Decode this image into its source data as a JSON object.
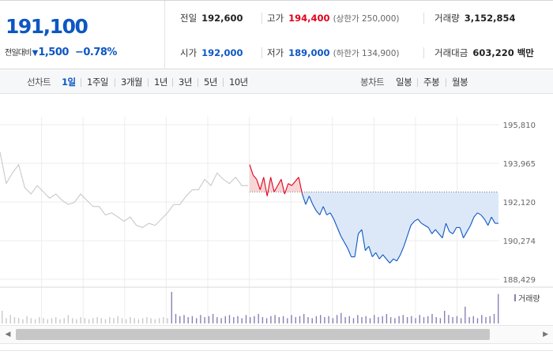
{
  "price": {
    "current": "191,100",
    "change_label": "전일대비",
    "change_triangle": "▼",
    "change_abs": "1,500",
    "change_pct": "−0.78%"
  },
  "quotes": {
    "prev_close": {
      "label": "전일",
      "value": "192,600"
    },
    "high": {
      "label": "고가",
      "value": "194,400",
      "limit": "(상한가 250,000)"
    },
    "volume": {
      "label": "거래량",
      "value": "3,152,854"
    },
    "open": {
      "label": "시가",
      "value": "192,000"
    },
    "low": {
      "label": "저가",
      "value": "189,000",
      "limit": "(하한가 134,900)"
    },
    "trade_value": {
      "label": "거래대금",
      "value": "603,220 백만"
    }
  },
  "tabs": {
    "line_caption": "선차트",
    "line_periods": [
      "1일",
      "1주일",
      "3개월",
      "1년",
      "3년",
      "5년",
      "10년"
    ],
    "active_period": "1일",
    "candle_caption": "봉차트",
    "candle_periods": [
      "일봉",
      "주봉",
      "월봉"
    ]
  },
  "colors": {
    "up": "#e0001b",
    "down": "#0d57c3",
    "prev_day_line": "#c4c4c4",
    "down_fill": "#dce8f8",
    "up_fill": "#f8d6d6"
  },
  "chart_data": {
    "type": "line",
    "y_ticks": [
      195810,
      193965,
      192120,
      190274,
      188429
    ],
    "ylim": [
      188429,
      195810
    ],
    "baseline": 192600,
    "grid": true,
    "volume_legend": "거래량",
    "series": [
      {
        "values": [
          194500,
          193000,
          193500,
          193900,
          192800,
          192500,
          192900,
          192600,
          192300,
          192500,
          192200,
          192000,
          192100,
          192500,
          192200,
          191900,
          191900,
          191500,
          191600,
          191400,
          191200,
          191400,
          191000,
          190900,
          191100,
          191000,
          191300,
          191600,
          192000,
          192000,
          192400,
          192700,
          192700,
          193200,
          192900,
          193500,
          193200,
          193000,
          193300,
          192900,
          192900
        ]
      },
      {
        "values": [
          193900,
          193400,
          193200,
          192700,
          193300,
          192400,
          193300,
          192600,
          192900,
          193200,
          192500,
          193000,
          192900,
          193100,
          193300,
          192500,
          192000,
          192400,
          192000,
          191700,
          191500,
          191900,
          191500,
          191600,
          191300,
          190900,
          190500,
          190200,
          189900,
          189500,
          189500,
          190600,
          190800,
          189800,
          190000,
          189500,
          189700,
          189400,
          189600,
          189400,
          189200,
          189400,
          189300,
          189600,
          190000,
          190500,
          191000,
          191200,
          191300,
          191100,
          191000,
          190900,
          190600,
          190800,
          190600,
          190400,
          191100,
          190700,
          190600,
          190900,
          190900,
          190400,
          190700,
          191000,
          191400,
          191600,
          191500,
          191300,
          191000,
          191400,
          191100,
          191100
        ]
      }
    ],
    "volume": [
      12,
      5,
      8,
      6,
      5,
      4,
      7,
      5,
      4,
      6,
      5,
      4,
      5,
      6,
      4,
      5,
      8,
      5,
      4,
      6,
      5,
      4,
      5,
      6,
      5,
      4,
      6,
      5,
      7,
      5,
      4,
      6,
      5,
      4,
      5,
      6,
      5,
      4,
      5,
      6,
      5,
      30,
      9,
      7,
      8,
      6,
      7,
      5,
      8,
      6,
      7,
      9,
      6,
      5,
      7,
      8,
      6,
      7,
      5,
      8,
      6,
      7,
      9,
      6,
      5,
      7,
      8,
      6,
      7,
      5,
      8,
      6,
      7,
      9,
      6,
      5,
      7,
      8,
      6,
      7,
      5,
      8,
      10,
      6,
      7,
      5,
      8,
      6,
      7,
      5,
      8,
      6,
      7,
      9,
      6,
      5,
      7,
      8,
      6,
      7,
      5,
      8,
      6,
      7,
      9,
      6,
      5,
      12,
      8,
      6,
      7,
      5,
      16,
      6,
      7,
      5,
      8,
      6,
      7,
      9,
      28
    ]
  }
}
